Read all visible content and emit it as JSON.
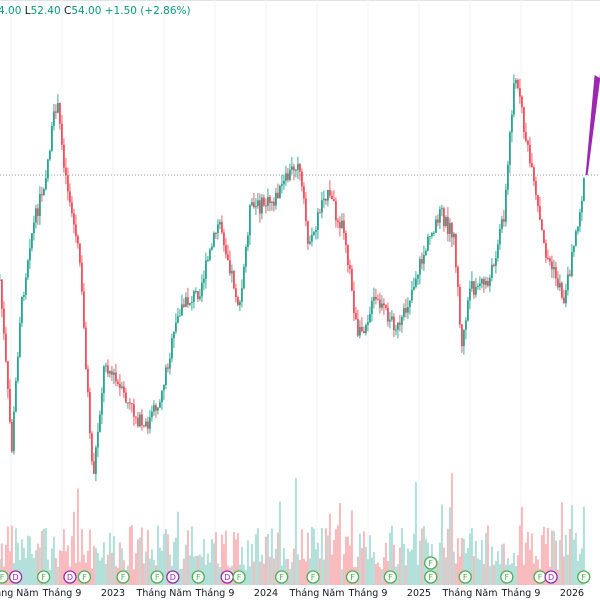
{
  "legend": {
    "high_value_partial": "4.00",
    "low_label": "L",
    "low_value": "52.40",
    "close_label": "C",
    "close_value": "54.00",
    "change": "+1.50 (+2.86%)"
  },
  "colors": {
    "up": "#089981",
    "down": "#f23645",
    "volume_up": "#9fd7cf",
    "volume_down": "#f7a9ae",
    "arrow": "#9c27b0",
    "event_f": "#4caf50",
    "event_d": "#9c27b0"
  },
  "chart_data": {
    "type": "candlestick",
    "title": "",
    "x_tick_labels": [
      {
        "date": "2022-05-01",
        "label": "Tháng Năm"
      },
      {
        "date": "2022-09-01",
        "label": "Tháng 9"
      },
      {
        "date": "2023-01-01",
        "label": "2023"
      },
      {
        "date": "2023-05-01",
        "label": "Tháng Năm"
      },
      {
        "date": "2023-09-01",
        "label": "Tháng 9"
      },
      {
        "date": "2024-01-01",
        "label": "2024"
      },
      {
        "date": "2024-05-01",
        "label": "Tháng Năm"
      },
      {
        "date": "2024-09-01",
        "label": "Tháng 9"
      },
      {
        "date": "2025-01-01",
        "label": "2025"
      },
      {
        "date": "2025-05-01",
        "label": "Tháng Năm"
      },
      {
        "date": "2025-09-01",
        "label": "Tháng 9"
      },
      {
        "date": "2026-01-01",
        "label": "2026"
      }
    ],
    "last_price_line": 54.0,
    "approx_close_path": [
      [
        "2022-04-05",
        43.5
      ],
      [
        "2022-05-03",
        26.5
      ],
      [
        "2022-05-22",
        39.5
      ],
      [
        "2022-06-16",
        47.5
      ],
      [
        "2022-07-21",
        53.5
      ],
      [
        "2022-08-19",
        61.5
      ],
      [
        "2022-09-08",
        54.5
      ],
      [
        "2022-10-13",
        45.5
      ],
      [
        "2022-11-14",
        23.5
      ],
      [
        "2022-12-12",
        35.5
      ],
      [
        "2023-01-17",
        32.5
      ],
      [
        "2023-03-16",
        28.5
      ],
      [
        "2023-04-21",
        31.5
      ],
      [
        "2023-06-08",
        40.5
      ],
      [
        "2023-07-25",
        42.5
      ],
      [
        "2023-09-12",
        49.5
      ],
      [
        "2023-10-30",
        40.5
      ],
      [
        "2023-11-23",
        50.5
      ],
      [
        "2024-01-22",
        51.5
      ],
      [
        "2024-03-16",
        55.5
      ],
      [
        "2024-04-14",
        46.5
      ],
      [
        "2024-05-19",
        52.5
      ],
      [
        "2024-07-06",
        48.5
      ],
      [
        "2024-08-07",
        37.5
      ],
      [
        "2024-09-17",
        41.5
      ],
      [
        "2024-11-16",
        38.5
      ],
      [
        "2024-12-21",
        43.5
      ],
      [
        "2025-02-20",
        50.5
      ],
      [
        "2025-03-25",
        47.5
      ],
      [
        "2025-04-12",
        36.5
      ],
      [
        "2025-04-30",
        42.5
      ],
      [
        "2025-06-18",
        43.5
      ],
      [
        "2025-07-23",
        50.5
      ],
      [
        "2025-08-16",
        64.5
      ],
      [
        "2025-09-21",
        55.5
      ],
      [
        "2025-10-27",
        46.5
      ],
      [
        "2025-12-14",
        41.5
      ],
      [
        "2026-01-19",
        50.5
      ],
      [
        "2026-02-03",
        54.0
      ]
    ],
    "events": [
      {
        "date": "2022-04-10",
        "type": "F"
      },
      {
        "date": "2022-05-12",
        "type": "D"
      },
      {
        "date": "2022-07-18",
        "type": "F"
      },
      {
        "date": "2022-09-20",
        "type": "D"
      },
      {
        "date": "2022-10-24",
        "type": "F"
      },
      {
        "date": "2023-01-25",
        "type": "F"
      },
      {
        "date": "2023-04-15",
        "type": "F"
      },
      {
        "date": "2023-05-22",
        "type": "D"
      },
      {
        "date": "2023-07-22",
        "type": "F"
      },
      {
        "date": "2023-09-30",
        "type": "D"
      },
      {
        "date": "2023-10-28",
        "type": "F"
      },
      {
        "date": "2024-02-08",
        "type": "F"
      },
      {
        "date": "2024-04-22",
        "type": "F"
      },
      {
        "date": "2024-07-25",
        "type": "F"
      },
      {
        "date": "2024-10-24",
        "type": "F"
      },
      {
        "date": "2025-01-29",
        "type": "F"
      },
      {
        "date": "2025-01-29",
        "type": "F"
      },
      {
        "date": "2025-04-20",
        "type": "F"
      },
      {
        "date": "2025-07-28",
        "type": "F"
      },
      {
        "date": "2025-10-16",
        "type": "F"
      },
      {
        "date": "2025-11-12",
        "type": "D"
      },
      {
        "date": "2026-01-29",
        "type": "F"
      }
    ],
    "annotation": "purple upward arrow from last close"
  }
}
